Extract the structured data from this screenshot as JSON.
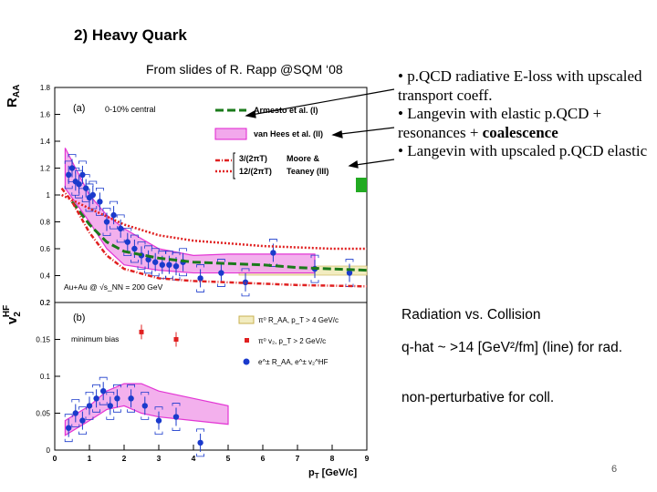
{
  "slide": {
    "title": "2) Heavy Quark",
    "source": "From slides of R. Rapp @SQM ‘08",
    "bullets": [
      {
        "text": "• p.QCD radiative E-loss with upscaled transport coeff.",
        "bold_tail": ""
      },
      {
        "text": "• Langevin with elastic p.QCD + resonances + ",
        "bold_tail": "coalescence"
      },
      {
        "text": "• Langevin with upscaled p.QCD elastic",
        "bold_tail": ""
      }
    ],
    "radiation_vs_collision": "Radiation  vs.  Collision",
    "qhat_note": "q-hat ~ >14 [GeV²/fm] (line) for rad.",
    "nonpert_note": "non-perturbative for coll.",
    "page_number": "6"
  },
  "figure": {
    "top_panel": {
      "ylabel": "R_AA",
      "panel_label": "(a)",
      "centrality": "0-10% central",
      "system": "Au+Au @ √s_NN = 200 GeV",
      "yticks": [
        "0.2",
        "0.4",
        "0.6",
        "0.8",
        "1",
        "1.2",
        "1.4",
        "1.6",
        "1.8"
      ],
      "legend": [
        {
          "label": "Armesto et al. (I)",
          "color": "#1a7a1a",
          "style": "dashed"
        },
        {
          "label": "van Hees et al. (II)",
          "color": "#e020d0",
          "style": "band"
        },
        {
          "label": "3/(2πT)",
          "color": "#e02020",
          "style": "dashdot"
        },
        {
          "label": "12/(2πT)",
          "color": "#e02020",
          "style": "dotted"
        },
        {
          "label": "Moore &",
          "color": "#000000",
          "style": "text"
        },
        {
          "label": "Teaney (III)",
          "color": "#000000",
          "style": "text"
        }
      ]
    },
    "bottom_panel": {
      "ylabel": "v_2^HF",
      "panel_label": "(b)",
      "centrality": "minimum bias",
      "yticks": [
        "0",
        "0.05",
        "0.1",
        "0.15",
        "0.2"
      ],
      "legend": [
        {
          "label": "π⁰ R_AA, p_T > 4 GeV/c",
          "color": "#d4c070"
        },
        {
          "label": "π⁰ v₂, p_T > 2 GeV/c",
          "color": "#e02020"
        },
        {
          "label": "e^± R_AA, e^± v₂^HF",
          "color": "#1a3acc"
        }
      ]
    },
    "xticks": [
      "0",
      "1",
      "2",
      "3",
      "4",
      "5",
      "6",
      "7",
      "8",
      "9"
    ],
    "xlabel": "p_T [GeV/c]"
  },
  "chart_data": [
    {
      "type": "scatter",
      "title": "",
      "xlabel": "p_T [GeV/c]",
      "ylabel": "R_AA",
      "xlim": [
        0,
        9
      ],
      "ylim": [
        0.2,
        1.8
      ],
      "series": [
        {
          "name": "e^± R_AA",
          "x": [
            0.4,
            0.5,
            0.6,
            0.7,
            0.8,
            0.9,
            1.0,
            1.1,
            1.3,
            1.5,
            1.7,
            1.9,
            2.1,
            2.3,
            2.5,
            2.7,
            2.9,
            3.1,
            3.3,
            3.5,
            3.7,
            4.2,
            4.8,
            5.5,
            6.3,
            7.5,
            8.5
          ],
          "y": [
            1.15,
            1.2,
            1.1,
            1.08,
            1.15,
            1.05,
            0.98,
            1.0,
            0.95,
            0.8,
            0.85,
            0.75,
            0.65,
            0.6,
            0.55,
            0.52,
            0.5,
            0.48,
            0.48,
            0.47,
            0.5,
            0.38,
            0.42,
            0.35,
            0.57,
            0.45,
            0.42
          ]
        },
        {
          "name": "Armesto et al. (I)",
          "x": [
            0.5,
            1,
            1.5,
            2,
            3,
            4,
            5,
            6,
            7,
            8,
            9
          ],
          "y": [
            0.95,
            0.78,
            0.65,
            0.58,
            0.53,
            0.5,
            0.49,
            0.48,
            0.46,
            0.45,
            0.44
          ]
        },
        {
          "name": "3/(2πT)",
          "x": [
            0.2,
            0.5,
            1,
            1.5,
            2,
            3,
            4,
            5,
            6,
            7,
            9
          ],
          "y": [
            1.05,
            0.95,
            0.72,
            0.55,
            0.45,
            0.38,
            0.36,
            0.35,
            0.34,
            0.33,
            0.32
          ]
        },
        {
          "name": "12/(2πT)",
          "x": [
            0.2,
            1,
            2,
            3,
            4,
            5,
            6,
            7,
            8,
            9
          ],
          "y": [
            1.0,
            0.9,
            0.78,
            0.7,
            0.66,
            0.64,
            0.62,
            0.61,
            0.6,
            0.6
          ]
        }
      ],
      "band": {
        "name": "van Hees et al. (II)",
        "x": [
          0.3,
          1,
          1.5,
          2,
          3,
          4,
          5,
          6,
          7,
          7.5
        ],
        "y_low": [
          1.05,
          0.8,
          0.6,
          0.48,
          0.44,
          0.42,
          0.42,
          0.42,
          0.42,
          0.42
        ],
        "y_high": [
          1.35,
          1.0,
          0.85,
          0.75,
          0.6,
          0.55,
          0.56,
          0.56,
          0.56,
          0.56
        ]
      }
    },
    {
      "type": "scatter",
      "title": "",
      "xlabel": "p_T [GeV/c]",
      "ylabel": "v_2^HF",
      "xlim": [
        0,
        9
      ],
      "ylim": [
        0,
        0.2
      ],
      "series": [
        {
          "name": "e^± v₂^HF",
          "x": [
            0.4,
            0.6,
            0.8,
            1.0,
            1.2,
            1.4,
            1.6,
            1.8,
            2.2,
            2.6,
            3.0,
            3.5,
            4.2
          ],
          "y": [
            0.03,
            0.05,
            0.04,
            0.06,
            0.07,
            0.08,
            0.06,
            0.07,
            0.07,
            0.06,
            0.04,
            0.045,
            0.01
          ]
        },
        {
          "name": "π⁰ v₂, p_T > 2 GeV/c",
          "x": [
            2.5,
            3.5
          ],
          "y": [
            0.16,
            0.15
          ]
        }
      ],
      "band": {
        "name": "van Hees et al. (II)",
        "x": [
          0.3,
          1,
          1.5,
          2,
          2.5,
          3,
          4,
          5
        ],
        "y_low": [
          0.02,
          0.04,
          0.055,
          0.06,
          0.05,
          0.045,
          0.04,
          0.035
        ],
        "y_high": [
          0.04,
          0.06,
          0.08,
          0.09,
          0.09,
          0.08,
          0.07,
          0.06
        ]
      }
    }
  ]
}
